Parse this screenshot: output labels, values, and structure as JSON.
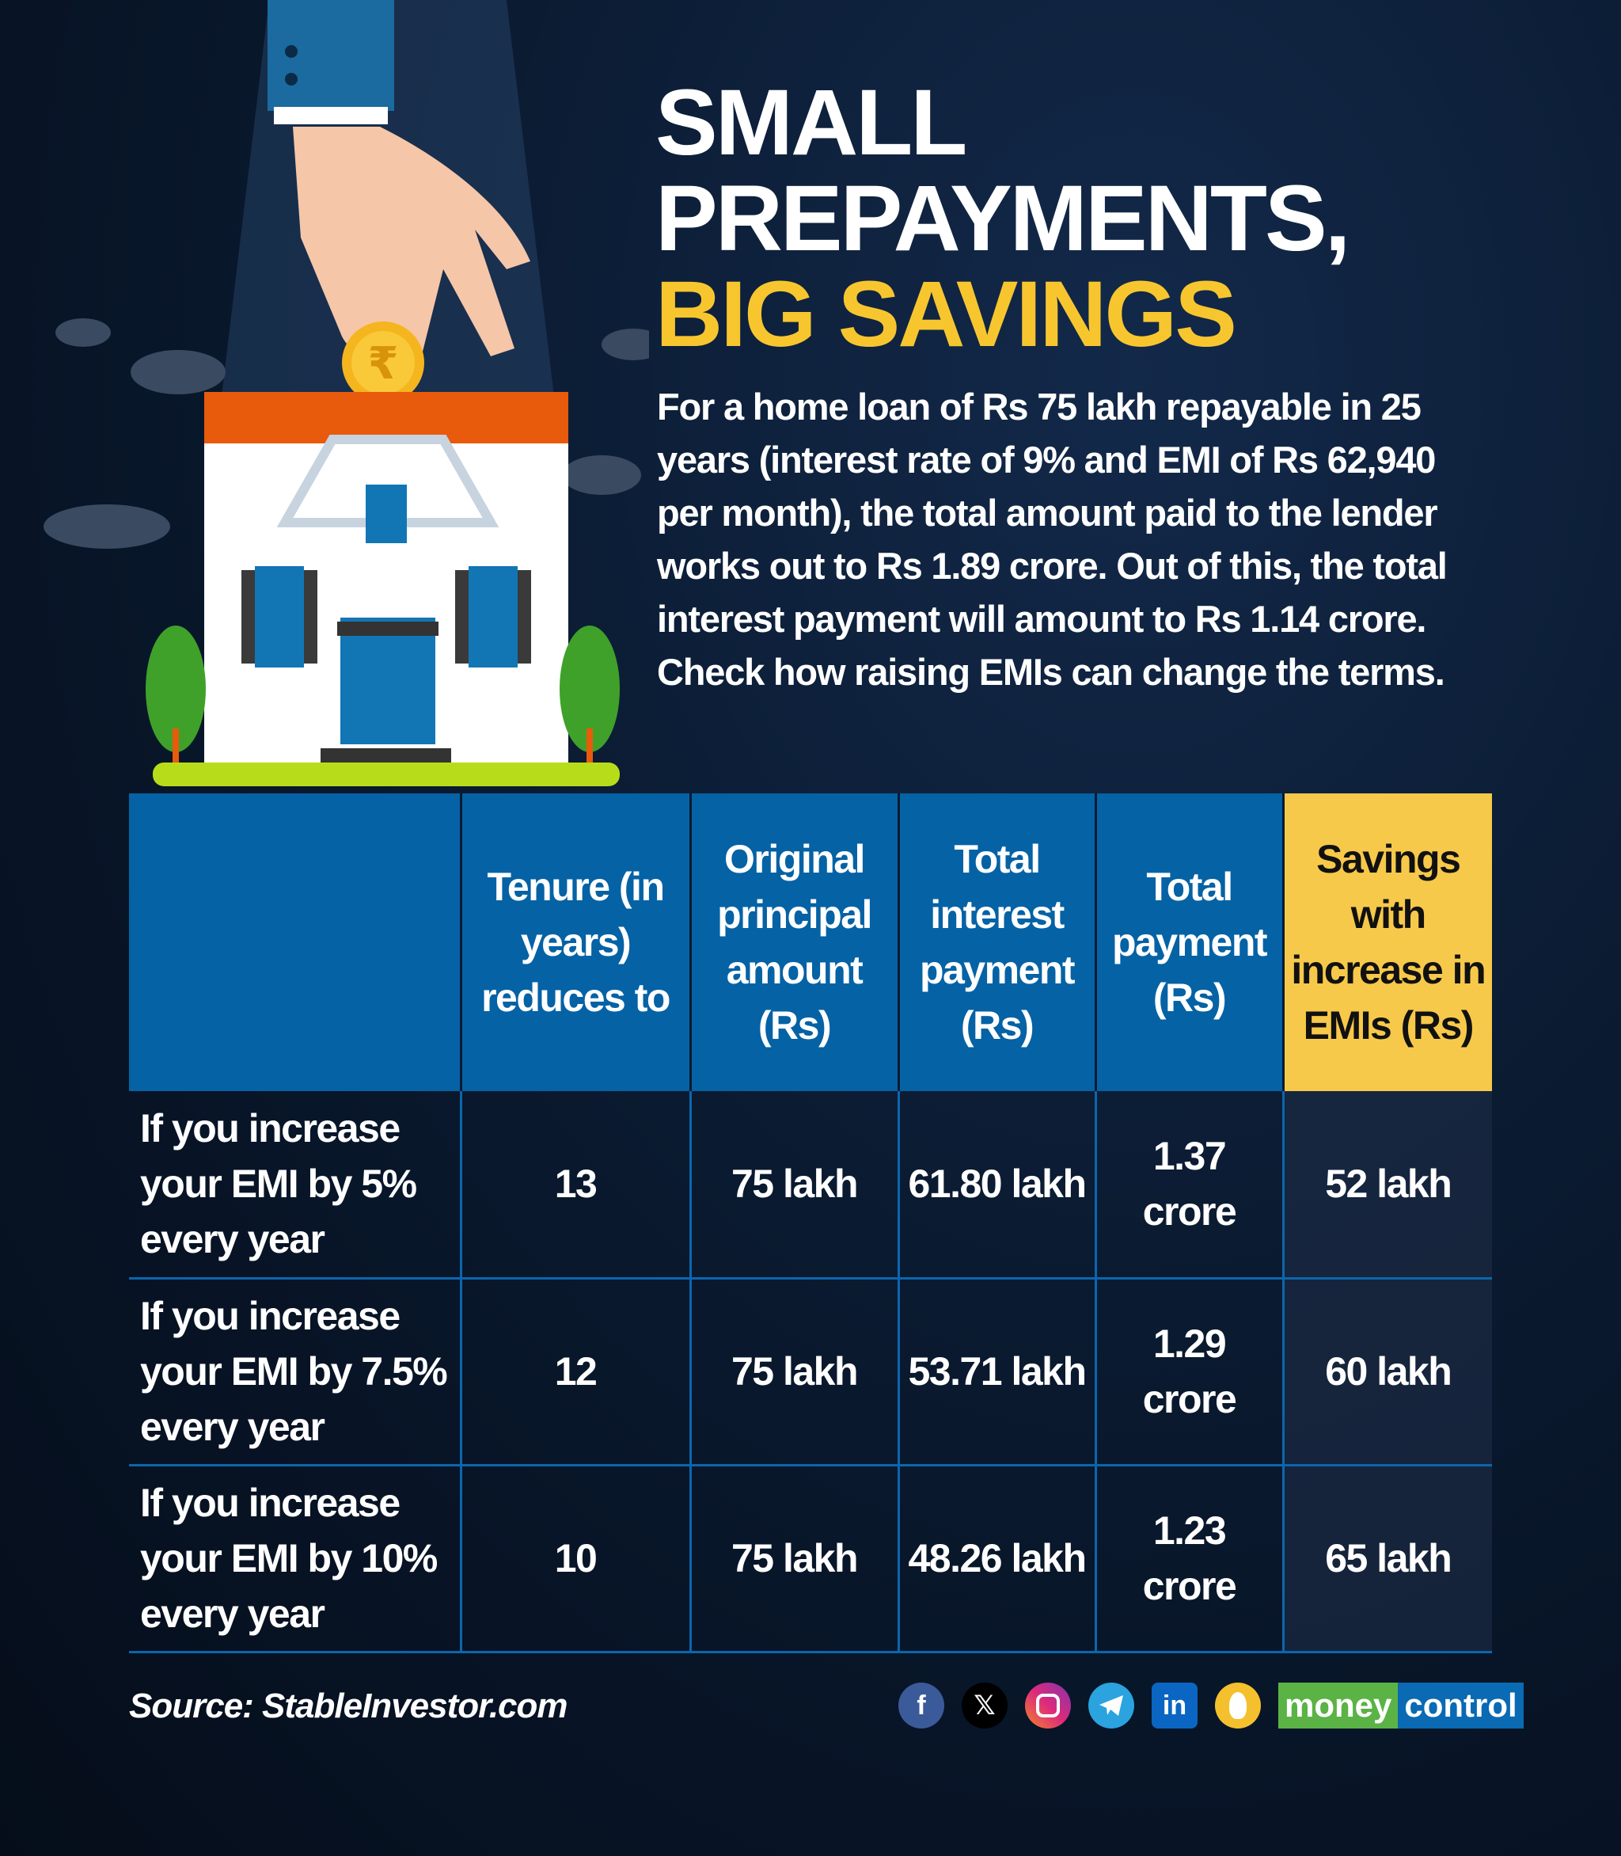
{
  "title": {
    "line1": "SMALL",
    "line2": "PREPAYMENTS,",
    "line3": "BIG SAVINGS"
  },
  "intro": "For a home loan of Rs 75 lakh repayable in 25 years (interest rate of 9% and EMI of Rs 62,940 per month), the total amount paid to the lender works out to Rs 1.89 crore. Out of this, the total interest payment will amount to Rs 1.14 crore. Check how raising EMIs can change the terms.",
  "coin_symbol": "₹",
  "table": {
    "headers": [
      "",
      "Tenure (in years) reduces to",
      "Original principal amount (Rs)",
      "Total interest payment (Rs)",
      "Total payment (Rs)",
      "Savings with increase in EMIs (Rs)"
    ],
    "rows": [
      [
        "If you increase your EMI by 5% every year",
        "13",
        "75 lakh",
        "61.80 lakh",
        "1.37 crore",
        "52 lakh"
      ],
      [
        "If you increase your EMI by 7.5% every year",
        "12",
        "75 lakh",
        "53.71 lakh",
        "1.29 crore",
        "60 lakh"
      ],
      [
        "If you increase your EMI by 10% every year",
        "10",
        "75 lakh",
        "48.26 lakh",
        "1.23 crore",
        "65 lakh"
      ]
    ]
  },
  "source": "Source: StableInvestor.com",
  "social": {
    "facebook": "f",
    "x": "𝕏",
    "linkedin": "in"
  },
  "brand": {
    "part1": "money",
    "part2": "control"
  },
  "colors": {
    "accent": "#f7c62f",
    "header_blue": "#0562a5",
    "brand_green": "#5bb346",
    "brand_blue": "#0a6ab3"
  }
}
